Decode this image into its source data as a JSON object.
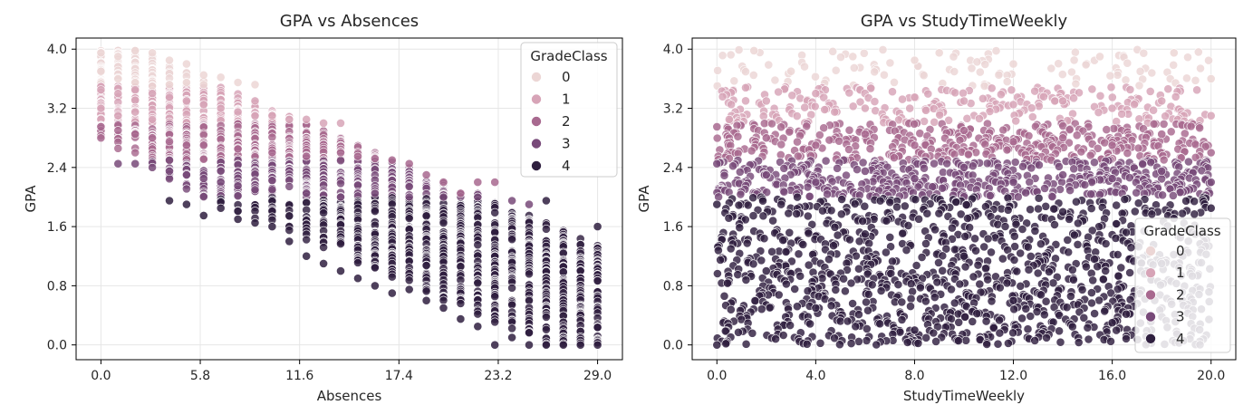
{
  "palette": {
    "0": "#ecd6d5",
    "1": "#d7a4b7",
    "2": "#a8698f",
    "3": "#784a79",
    "4": "#2f1f3f"
  },
  "chart_data": [
    {
      "type": "scatter",
      "title": "GPA vs Absences",
      "xlabel": "Absences",
      "ylabel": "GPA",
      "xlim": [
        -1.45,
        30.45
      ],
      "ylim": [
        -0.2,
        4.15
      ],
      "xticks": [
        0.0,
        5.8,
        11.6,
        17.4,
        23.2,
        29.0
      ],
      "xtick_labels": [
        "0.0",
        "5.8",
        "11.6",
        "17.4",
        "23.2",
        "29.0"
      ],
      "yticks": [
        0.0,
        0.8,
        1.6,
        2.4,
        3.2,
        4.0
      ],
      "ytick_labels": [
        "0.0",
        "0.8",
        "1.6",
        "2.4",
        "3.2",
        "4.0"
      ],
      "grid": true,
      "legend": {
        "title": "GradeClass",
        "position": "upper right",
        "entries": [
          "0",
          "1",
          "2",
          "3",
          "4"
        ]
      },
      "hue": "GradeClass",
      "series": [
        {
          "name": "0",
          "description": "GPA 3.5-4.0 at absences 0-9",
          "points": [
            [
              0,
              3.95
            ],
            [
              0,
              3.7
            ],
            [
              1,
              3.9
            ],
            [
              1,
              3.6
            ],
            [
              2,
              3.98
            ],
            [
              2,
              3.55
            ],
            [
              3,
              3.95
            ],
            [
              3,
              3.5
            ],
            [
              4,
              3.85
            ],
            [
              4,
              3.52
            ],
            [
              5,
              3.8
            ],
            [
              5,
              3.55
            ],
            [
              6,
              3.65
            ],
            [
              6,
              3.52
            ],
            [
              7,
              3.62
            ],
            [
              8,
              3.55
            ],
            [
              9,
              3.52
            ]
          ]
        },
        {
          "name": "1",
          "description": "GPA ~3.0-3.5 at absences 0-14",
          "points": [
            [
              0,
              3.45
            ],
            [
              0,
              3.2
            ],
            [
              1,
              3.4
            ],
            [
              1,
              3.1
            ],
            [
              2,
              3.45
            ],
            [
              2,
              3.15
            ],
            [
              3,
              3.4
            ],
            [
              3,
              3.05
            ],
            [
              4,
              3.35
            ],
            [
              5,
              3.3
            ],
            [
              6,
              3.25
            ],
            [
              7,
              3.2
            ],
            [
              8,
              3.15
            ],
            [
              9,
              3.3
            ],
            [
              10,
              3.1
            ],
            [
              11,
              3.05
            ],
            [
              12,
              3.05
            ],
            [
              13,
              3.0
            ],
            [
              14,
              3.0
            ]
          ]
        },
        {
          "name": "2",
          "description": "GPA ~2.5-3.0 at absences 0-24",
          "points": [
            [
              0,
              2.95
            ],
            [
              0,
              2.8
            ],
            [
              1,
              2.9
            ],
            [
              2,
              2.85
            ],
            [
              3,
              2.8
            ],
            [
              4,
              2.75
            ],
            [
              5,
              2.7
            ],
            [
              6,
              2.7
            ],
            [
              8,
              2.65
            ],
            [
              10,
              2.6
            ],
            [
              12,
              2.55
            ],
            [
              14,
              2.6
            ],
            [
              15,
              2.55
            ],
            [
              16,
              2.52
            ],
            [
              17,
              2.5
            ],
            [
              18,
              2.45
            ],
            [
              19,
              2.3
            ],
            [
              20,
              2.2
            ],
            [
              21,
              2.05
            ],
            [
              22,
              2.2
            ],
            [
              23,
              2.2
            ]
          ]
        },
        {
          "name": "3",
          "description": "GPA ~2.0-2.5 band, plus upper values near absences 17-25",
          "points": [
            [
              1,
              2.45
            ],
            [
              2,
              2.45
            ],
            [
              3,
              2.4
            ],
            [
              4,
              2.35
            ],
            [
              5,
              2.3
            ],
            [
              6,
              2.25
            ],
            [
              7,
              2.2
            ],
            [
              8,
              2.15
            ],
            [
              9,
              2.1
            ],
            [
              10,
              2.1
            ],
            [
              12,
              2.05
            ],
            [
              14,
              2.0
            ],
            [
              16,
              2.05
            ],
            [
              18,
              2.0
            ],
            [
              20,
              2.0
            ],
            [
              22,
              2.0
            ],
            [
              24,
              1.95
            ],
            [
              25,
              1.9
            ]
          ]
        },
        {
          "name": "4",
          "description": "GPA 0-2.0 at absences 4-29, descending",
          "points": [
            [
              4,
              1.95
            ],
            [
              5,
              1.9
            ],
            [
              6,
              1.75
            ],
            [
              7,
              1.85
            ],
            [
              8,
              1.7
            ],
            [
              9,
              1.65
            ],
            [
              10,
              1.6
            ],
            [
              11,
              1.4
            ],
            [
              12,
              1.2
            ],
            [
              13,
              1.1
            ],
            [
              14,
              1.0
            ],
            [
              15,
              0.9
            ],
            [
              16,
              0.8
            ],
            [
              17,
              0.7
            ],
            [
              18,
              0.75
            ],
            [
              19,
              0.6
            ],
            [
              20,
              0.5
            ],
            [
              21,
              0.35
            ],
            [
              22,
              0.25
            ],
            [
              23,
              0.0
            ],
            [
              24,
              0.1
            ],
            [
              25,
              0.0
            ],
            [
              26,
              0.0
            ],
            [
              27,
              0.0
            ],
            [
              28,
              0.0
            ],
            [
              29,
              0.0
            ],
            [
              26,
              1.95
            ],
            [
              29,
              1.6
            ]
          ]
        }
      ]
    },
    {
      "type": "scatter",
      "title": "GPA vs StudyTimeWeekly",
      "xlabel": "StudyTimeWeekly",
      "ylabel": "GPA",
      "xlim": [
        -1.0,
        21.0
      ],
      "ylim": [
        -0.2,
        4.15
      ],
      "xticks": [
        0.0,
        4.0,
        8.0,
        12.0,
        16.0,
        20.0
      ],
      "xtick_labels": [
        "0.0",
        "4.0",
        "8.0",
        "12.0",
        "16.0",
        "20.0"
      ],
      "yticks": [
        0.0,
        0.8,
        1.6,
        2.4,
        3.2,
        4.0
      ],
      "ytick_labels": [
        "0.0",
        "0.8",
        "1.6",
        "2.4",
        "3.2",
        "4.0"
      ],
      "grid": true,
      "legend": {
        "title": "GradeClass",
        "position": "lower right",
        "entries": [
          "0",
          "1",
          "2",
          "3",
          "4"
        ]
      },
      "hue": "GradeClass",
      "series": [
        {
          "name": "0",
          "description": "GPA ~3.5-4.0 across study time 1-20",
          "points": [
            [
              1.5,
              3.98
            ],
            [
              3,
              3.7
            ],
            [
              5.5,
              3.9
            ],
            [
              8,
              3.85
            ],
            [
              9,
              3.95
            ],
            [
              12,
              3.8
            ],
            [
              15.5,
              3.9
            ],
            [
              18.5,
              3.95
            ],
            [
              20,
              3.6
            ]
          ]
        },
        {
          "name": "1",
          "description": "GPA ~3.0-3.5 across study time 0-20",
          "points": [
            [
              0.5,
              3.05
            ],
            [
              2,
              3.3
            ],
            [
              4,
              3.4
            ],
            [
              6,
              3.2
            ],
            [
              8,
              3.35
            ],
            [
              10,
              3.3
            ],
            [
              12,
              3.25
            ],
            [
              14,
              3.3
            ],
            [
              16,
              3.2
            ],
            [
              18,
              3.3
            ],
            [
              20,
              3.1
            ]
          ]
        },
        {
          "name": "2",
          "description": "GPA ~2.5-3.0 across study time 0-20",
          "points": [
            [
              0,
              2.95
            ],
            [
              2,
              2.8
            ],
            [
              4,
              2.7
            ],
            [
              6,
              2.85
            ],
            [
              8,
              2.7
            ],
            [
              10,
              2.9
            ],
            [
              12,
              2.75
            ],
            [
              14,
              2.8
            ],
            [
              16,
              2.7
            ],
            [
              18,
              2.85
            ],
            [
              20,
              2.6
            ]
          ]
        },
        {
          "name": "3",
          "description": "GPA ~2.0-2.5 across study time 0-20",
          "points": [
            [
              0,
              2.45
            ],
            [
              2,
              2.3
            ],
            [
              4,
              2.2
            ],
            [
              6,
              2.35
            ],
            [
              8,
              2.25
            ],
            [
              10,
              2.4
            ],
            [
              12,
              2.2
            ],
            [
              14,
              2.3
            ],
            [
              16,
              2.25
            ],
            [
              18,
              2.35
            ],
            [
              20,
              2.2
            ]
          ]
        },
        {
          "name": "4",
          "description": "GPA 0-2.0 across study time 0-20",
          "points": [
            [
              0,
              0.0
            ],
            [
              0,
              1.9
            ],
            [
              2,
              1.0
            ],
            [
              4,
              0.5
            ],
            [
              6,
              1.5
            ],
            [
              8,
              0.2
            ],
            [
              10,
              1.2
            ],
            [
              12,
              0.6
            ],
            [
              14,
              1.8
            ],
            [
              16,
              0.3
            ],
            [
              18,
              1.1
            ],
            [
              20,
              1.85
            ]
          ]
        }
      ]
    }
  ]
}
